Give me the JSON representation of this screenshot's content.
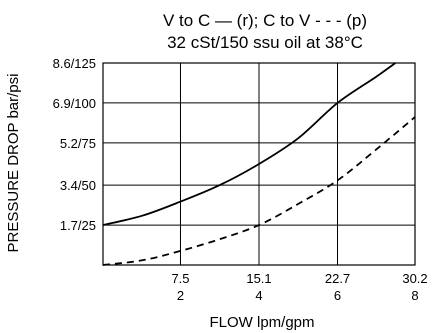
{
  "chart_data": {
    "type": "line",
    "title_line1": "V to C — (r); C to V - - - (p)",
    "title_line2": "32 cSt/150 ssu oil at 38°C",
    "xlabel": "FLOW lpm/gpm",
    "ylabel": "PRESSURE DROP bar/psi",
    "xlim": [
      0,
      30.2
    ],
    "ylim": [
      0,
      8.6
    ],
    "grid": true,
    "x_ticks": [
      {
        "value": 7.5,
        "label_primary": "7.5",
        "label_secondary": "2"
      },
      {
        "value": 15.1,
        "label_primary": "15.1",
        "label_secondary": "4"
      },
      {
        "value": 22.7,
        "label_primary": "22.7",
        "label_secondary": "6"
      },
      {
        "value": 30.2,
        "label_primary": "30.2",
        "label_secondary": "8"
      }
    ],
    "y_ticks": [
      {
        "value": 1.7,
        "label": "1.7/25"
      },
      {
        "value": 3.4,
        "label": "3.4/50"
      },
      {
        "value": 5.2,
        "label": "5.2/75"
      },
      {
        "value": 6.9,
        "label": "6.9/100"
      },
      {
        "value": 8.6,
        "label": "8.6/125"
      }
    ],
    "series": [
      {
        "style": "solid",
        "x": [
          0,
          3.8,
          7.5,
          11.3,
          15.1,
          18.9,
          22.7,
          26.4,
          28.3
        ],
        "y": [
          1.7,
          2.1,
          2.7,
          3.4,
          4.3,
          5.4,
          6.9,
          8.0,
          8.6
        ]
      },
      {
        "style": "dashed",
        "x": [
          0,
          3.8,
          7.5,
          11.3,
          15.1,
          18.9,
          22.7,
          26.4,
          30.2
        ],
        "y": [
          0,
          0.2,
          0.6,
          1.1,
          1.7,
          2.6,
          3.6,
          4.9,
          6.3
        ]
      }
    ]
  }
}
